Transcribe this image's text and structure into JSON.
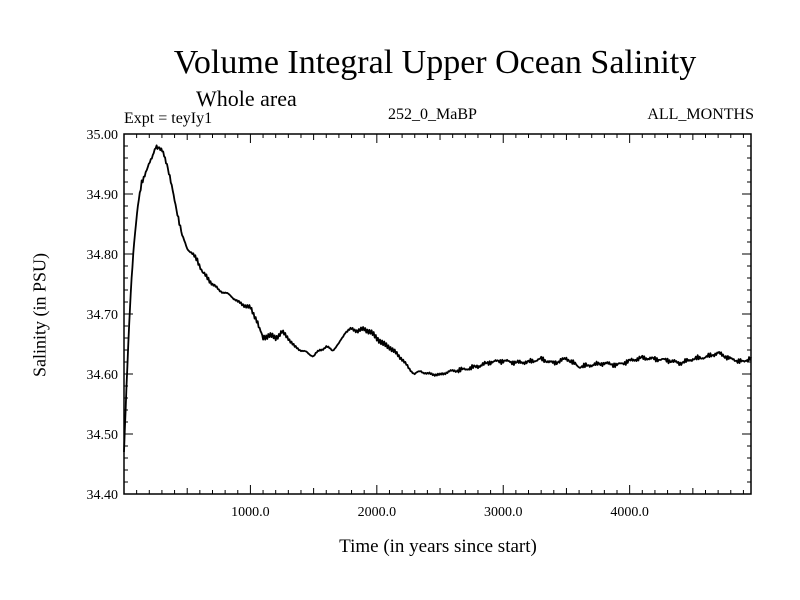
{
  "chart_data": {
    "type": "line",
    "title": "Volume Integral Upper Ocean Salinity",
    "subtitle": "Whole area",
    "experiment_label": "Expt = teyIy1",
    "center_label": "252_0_MaBP",
    "right_label": "ALL_MONTHS",
    "xlabel": "Time (in years since start)",
    "ylabel": "Salinity (in PSU)",
    "xlim": [
      0,
      4960
    ],
    "ylim": [
      34.4,
      35.0
    ],
    "xticks": [
      1000,
      2000,
      3000,
      4000
    ],
    "xtick_labels": [
      "1000.0",
      "2000.0",
      "3000.0",
      "4000.0"
    ],
    "yticks": [
      34.4,
      34.5,
      34.6,
      34.7,
      34.8,
      34.9,
      35.0
    ],
    "ytick_labels": [
      "34.40",
      "34.50",
      "34.60",
      "34.70",
      "34.80",
      "34.90",
      "35.00"
    ],
    "grid": false,
    "series": [
      {
        "name": "salinity",
        "x": [
          0,
          20,
          40,
          60,
          80,
          110,
          140,
          180,
          220,
          250,
          280,
          310,
          340,
          370,
          400,
          430,
          460,
          500,
          540,
          580,
          620,
          660,
          700,
          750,
          800,
          850,
          900,
          950,
          1000,
          1050,
          1080,
          1100,
          1150,
          1200,
          1250,
          1300,
          1350,
          1400,
          1450,
          1500,
          1550,
          1600,
          1650,
          1700,
          1750,
          1800,
          1850,
          1900,
          1950,
          2000,
          2050,
          2100,
          2150,
          2200,
          2250,
          2300,
          2350,
          2400,
          2450,
          2500,
          2550,
          2600,
          2700,
          2800,
          2900,
          3000,
          3100,
          3200,
          3300,
          3400,
          3500,
          3600,
          3700,
          3800,
          3900,
          4000,
          4100,
          4200,
          4300,
          4400,
          4500,
          4600,
          4700,
          4800,
          4900,
          4960
        ],
        "values": [
          34.47,
          34.58,
          34.68,
          34.76,
          34.82,
          34.88,
          34.92,
          34.94,
          34.96,
          34.98,
          34.975,
          34.97,
          34.95,
          34.92,
          34.89,
          34.86,
          34.83,
          34.81,
          34.8,
          34.79,
          34.77,
          34.76,
          34.75,
          34.74,
          34.735,
          34.73,
          34.72,
          34.715,
          34.71,
          34.69,
          34.67,
          34.66,
          34.665,
          34.66,
          34.67,
          34.66,
          34.645,
          34.64,
          34.635,
          34.63,
          34.64,
          34.645,
          34.64,
          34.65,
          34.67,
          34.675,
          34.672,
          34.675,
          34.67,
          34.66,
          34.65,
          34.645,
          34.635,
          34.625,
          34.61,
          34.6,
          34.605,
          34.6,
          34.6,
          34.598,
          34.603,
          34.605,
          34.608,
          34.613,
          34.62,
          34.622,
          34.619,
          34.62,
          34.625,
          34.618,
          34.626,
          34.612,
          34.615,
          34.618,
          34.615,
          34.622,
          34.627,
          34.625,
          34.623,
          34.618,
          34.625,
          34.628,
          34.635,
          34.625,
          34.62,
          34.628
        ]
      }
    ]
  }
}
